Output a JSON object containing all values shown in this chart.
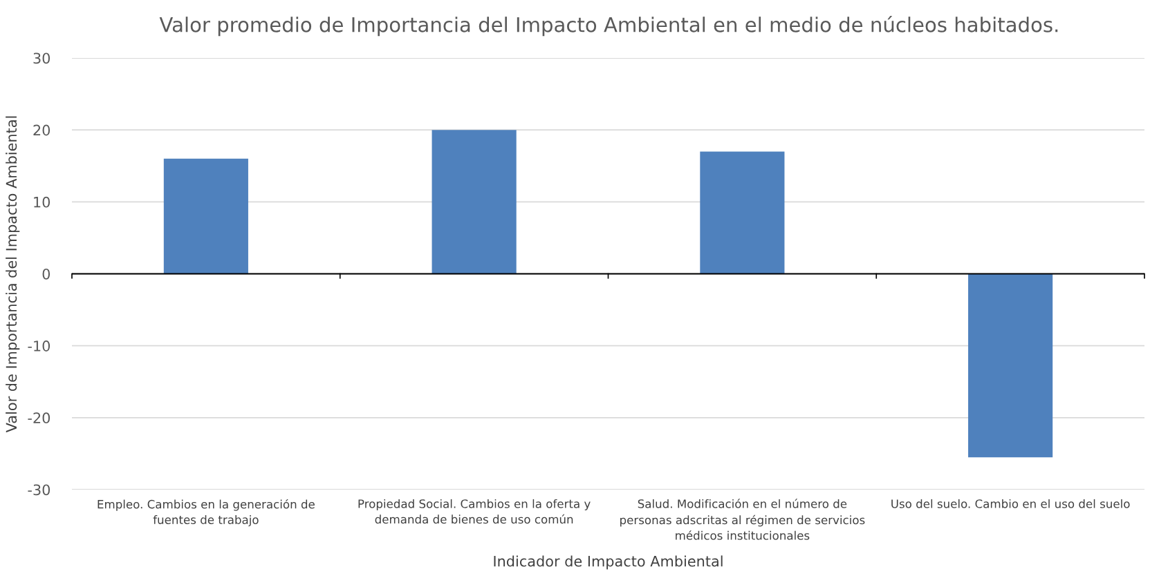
{
  "chart_data": {
    "type": "bar",
    "title": "Valor promedio de Importancia del Impacto Ambiental en el medio de núcleos habitados.",
    "xlabel": "Indicador de Impacto Ambiental",
    "ylabel": "Valor de Importancia del Impacto Ambiental",
    "categories": [
      "Empleo. Cambios en la generación de\nfuentes de trabajo",
      "Propiedad Social. Cambios en la oferta y\ndemanda de bienes de uso común",
      "Salud. Modificación en el número de\npersonas adscritas al régimen de servicios\nmédicos institucionales",
      "Uso del suelo. Cambio en el uso del suelo"
    ],
    "values": [
      16,
      20,
      17,
      -25.5
    ],
    "color": "#4f81bd",
    "ylim": [
      -30,
      30
    ],
    "yticks": [
      -30,
      -20,
      -10,
      0,
      10,
      20,
      30
    ],
    "grid": "y"
  }
}
